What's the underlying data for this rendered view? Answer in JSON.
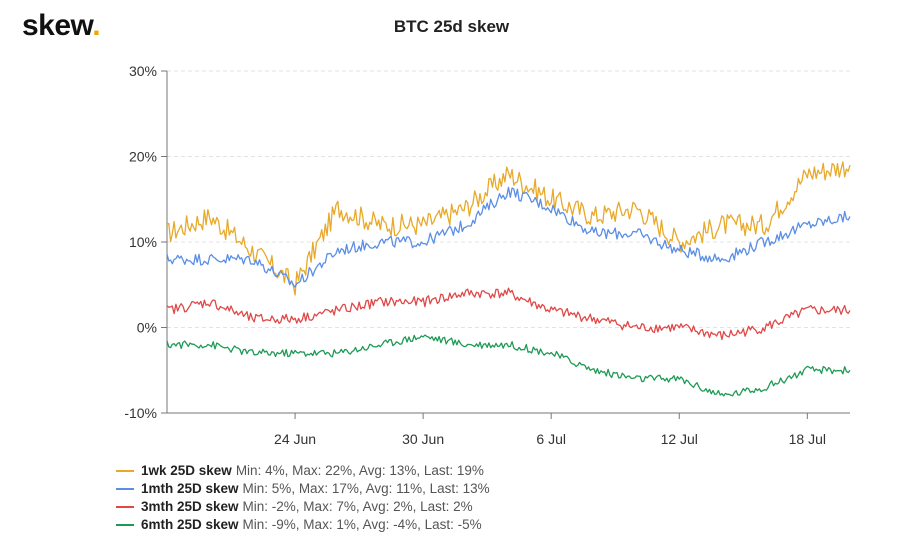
{
  "logo": {
    "text": "skew",
    "dot": ".",
    "dot_color": "#f0a500"
  },
  "chart_data": {
    "type": "line",
    "title": "BTC 25d skew",
    "xlabel": "",
    "ylabel": "",
    "ylim": [
      -10,
      30
    ],
    "yticks": [
      "30%",
      "20%",
      "10%",
      "0%",
      "-10%"
    ],
    "xticks": [
      "24 Jun",
      "30 Jun",
      "6 Jul",
      "12 Jul",
      "18 Jul"
    ],
    "x": [
      "18 Jun",
      "20 Jun",
      "22 Jun",
      "24 Jun",
      "26 Jun",
      "28 Jun",
      "30 Jun",
      "2 Jul",
      "4 Jul",
      "6 Jul",
      "8 Jul",
      "10 Jul",
      "12 Jul",
      "14 Jul",
      "16 Jul",
      "18 Jul",
      "20 Jul"
    ],
    "grid": true,
    "legend_position": "bottom-left",
    "series": [
      {
        "name": "1wk 25D skew",
        "color": "#e8a92a",
        "stats": "Min: 4%, Max: 22%, Avg: 13%, Last: 19%",
        "values": [
          11,
          13,
          9,
          5,
          14,
          12,
          12,
          14,
          18,
          15,
          13,
          14,
          10,
          12,
          12,
          18,
          19
        ]
      },
      {
        "name": "1mth 25D skew",
        "color": "#5b8ee6",
        "stats": "Min: 5%, Max: 17%, Avg: 11%, Last: 13%",
        "values": [
          8,
          8,
          8,
          5,
          9,
          10,
          10,
          12,
          16,
          14,
          11,
          11,
          9,
          8,
          10,
          12,
          13
        ]
      },
      {
        "name": "3mth 25D skew",
        "color": "#e04848",
        "stats": "Min: -2%, Max: 7%, Avg: 2%, Last: 2%",
        "values": [
          2,
          3,
          1,
          1,
          2,
          3,
          3,
          4,
          4,
          2,
          1,
          0,
          0,
          -1,
          0,
          2,
          2
        ]
      },
      {
        "name": "6mth 25D skew",
        "color": "#1e9a55",
        "stats": "Min: -9%, Max: 1%, Avg: -4%, Last: -5%",
        "values": [
          -2,
          -2,
          -3,
          -3,
          -3,
          -2,
          -1,
          -2,
          -2,
          -3,
          -5,
          -6,
          -6,
          -8,
          -7,
          -5,
          -5
        ]
      }
    ]
  }
}
